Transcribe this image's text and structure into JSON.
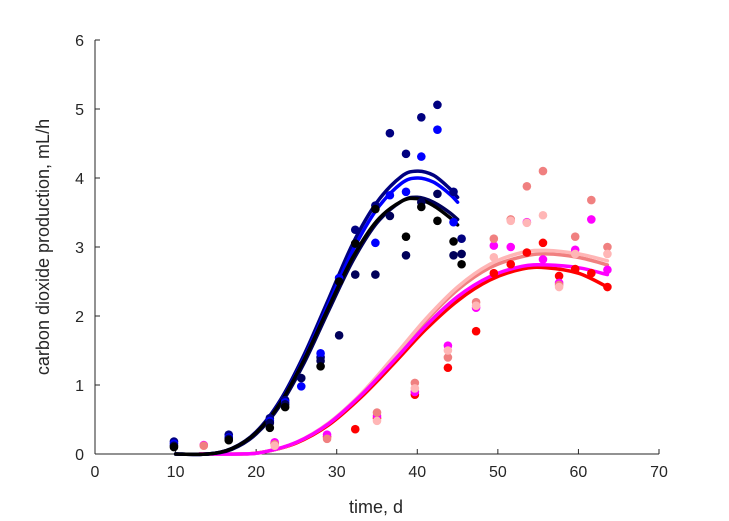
{
  "chart_data": {
    "type": "scatter",
    "title": "",
    "xlabel": "time, d",
    "ylabel": "carbon dioxide production, mL/h",
    "xlim": [
      0,
      70
    ],
    "ylim": [
      0,
      6
    ],
    "xticks": [
      "0",
      "10",
      "20",
      "30",
      "40",
      "50",
      "60",
      "70"
    ],
    "yticks": [
      "0",
      "1",
      "2",
      "3",
      "4",
      "5",
      "6"
    ],
    "grid": false,
    "legend": "none",
    "series": [
      {
        "color": "#000080",
        "points": [
          [
            9.8,
            0.18
          ],
          [
            16.6,
            0.28
          ],
          [
            21.7,
            0.52
          ],
          [
            23.6,
            0.78
          ],
          [
            28.0,
            1.4
          ],
          [
            30.3,
            2.55
          ],
          [
            32.3,
            3.25
          ],
          [
            34.8,
            3.6
          ],
          [
            36.6,
            4.65
          ],
          [
            38.6,
            4.35
          ],
          [
            40.5,
            4.88
          ],
          [
            42.5,
            5.06
          ],
          [
            44.5,
            3.8
          ],
          [
            45.5,
            3.12
          ]
        ],
        "fit": [
          [
            10,
            0.0
          ],
          [
            14,
            0.0
          ],
          [
            17,
            0.08
          ],
          [
            20,
            0.32
          ],
          [
            23,
            0.78
          ],
          [
            26,
            1.45
          ],
          [
            29,
            2.25
          ],
          [
            32,
            3.05
          ],
          [
            35,
            3.65
          ],
          [
            38,
            4.02
          ],
          [
            40,
            4.1
          ],
          [
            42,
            4.04
          ],
          [
            44,
            3.85
          ],
          [
            45,
            3.72
          ]
        ]
      },
      {
        "color": "#0000ff",
        "points": [
          [
            9.8,
            0.15
          ],
          [
            16.6,
            0.24
          ],
          [
            21.7,
            0.48
          ],
          [
            23.6,
            0.75
          ],
          [
            25.6,
            0.98
          ],
          [
            28.0,
            1.46
          ],
          [
            30.3,
            2.55
          ],
          [
            32.3,
            3.05
          ],
          [
            34.8,
            3.06
          ],
          [
            36.6,
            3.75
          ],
          [
            38.6,
            3.8
          ],
          [
            40.5,
            4.31
          ],
          [
            42.5,
            4.7
          ],
          [
            44.5,
            3.36
          ]
        ],
        "fit": [
          [
            10,
            0.0
          ],
          [
            14,
            0.0
          ],
          [
            17,
            0.08
          ],
          [
            20,
            0.31
          ],
          [
            23,
            0.75
          ],
          [
            26,
            1.4
          ],
          [
            29,
            2.18
          ],
          [
            32,
            2.95
          ],
          [
            35,
            3.55
          ],
          [
            38,
            3.92
          ],
          [
            40,
            4.0
          ],
          [
            42,
            3.94
          ],
          [
            44,
            3.77
          ],
          [
            45,
            3.65
          ]
        ]
      },
      {
        "color": "#00005a",
        "points": [
          [
            9.8,
            0.12
          ],
          [
            16.6,
            0.22
          ],
          [
            21.7,
            0.45
          ],
          [
            23.6,
            0.72
          ],
          [
            25.6,
            1.1
          ],
          [
            28.0,
            1.35
          ],
          [
            30.3,
            1.72
          ],
          [
            32.3,
            2.6
          ],
          [
            34.8,
            2.6
          ],
          [
            36.6,
            3.45
          ],
          [
            38.6,
            2.88
          ],
          [
            40.5,
            3.65
          ],
          [
            42.5,
            3.77
          ],
          [
            44.5,
            2.88
          ],
          [
            45.5,
            2.9
          ]
        ],
        "fit": [
          [
            10,
            0.0
          ],
          [
            14,
            0.0
          ],
          [
            17,
            0.07
          ],
          [
            20,
            0.29
          ],
          [
            23,
            0.71
          ],
          [
            26,
            1.33
          ],
          [
            29,
            2.08
          ],
          [
            32,
            2.8
          ],
          [
            35,
            3.35
          ],
          [
            38,
            3.66
          ],
          [
            40,
            3.72
          ],
          [
            42,
            3.65
          ],
          [
            44,
            3.5
          ],
          [
            45,
            3.4
          ]
        ]
      },
      {
        "color": "#000000",
        "points": [
          [
            9.8,
            0.1
          ],
          [
            16.6,
            0.2
          ],
          [
            21.7,
            0.38
          ],
          [
            23.6,
            0.68
          ],
          [
            28.0,
            1.27
          ],
          [
            30.3,
            2.5
          ],
          [
            32.3,
            3.05
          ],
          [
            34.8,
            3.55
          ],
          [
            38.6,
            3.15
          ],
          [
            40.5,
            3.58
          ],
          [
            42.5,
            3.38
          ],
          [
            44.5,
            3.08
          ],
          [
            45.5,
            2.75
          ]
        ],
        "fit": [
          [
            10,
            0.0
          ],
          [
            14,
            0.0
          ],
          [
            17,
            0.08
          ],
          [
            20,
            0.31
          ],
          [
            23,
            0.74
          ],
          [
            26,
            1.38
          ],
          [
            29,
            2.13
          ],
          [
            32,
            2.85
          ],
          [
            35,
            3.38
          ],
          [
            38,
            3.66
          ],
          [
            40,
            3.7
          ],
          [
            42,
            3.6
          ],
          [
            44,
            3.43
          ],
          [
            45,
            3.32
          ]
        ]
      },
      {
        "color": "#ff0000",
        "points": [
          [
            22.3,
            0.15
          ],
          [
            28.8,
            0.25
          ],
          [
            32.3,
            0.36
          ],
          [
            35.0,
            0.52
          ],
          [
            39.7,
            0.86
          ],
          [
            43.8,
            1.25
          ],
          [
            47.3,
            1.78
          ],
          [
            49.5,
            2.62
          ],
          [
            51.6,
            2.75
          ],
          [
            53.6,
            2.92
          ],
          [
            55.6,
            3.06
          ],
          [
            57.6,
            2.58
          ],
          [
            59.6,
            2.68
          ],
          [
            61.6,
            2.62
          ],
          [
            63.6,
            2.42
          ]
        ],
        "fit": [
          [
            13,
            0.0
          ],
          [
            18,
            0.0
          ],
          [
            21,
            0.03
          ],
          [
            25,
            0.16
          ],
          [
            29,
            0.42
          ],
          [
            33,
            0.82
          ],
          [
            37,
            1.3
          ],
          [
            41,
            1.8
          ],
          [
            45,
            2.22
          ],
          [
            49,
            2.52
          ],
          [
            53,
            2.68
          ],
          [
            56,
            2.7
          ],
          [
            60,
            2.62
          ],
          [
            63.6,
            2.42
          ]
        ]
      },
      {
        "color": "#ff00ff",
        "points": [
          [
            13.5,
            0.13
          ],
          [
            22.3,
            0.17
          ],
          [
            28.8,
            0.28
          ],
          [
            35.0,
            0.55
          ],
          [
            39.7,
            0.9
          ],
          [
            43.8,
            1.57
          ],
          [
            47.3,
            2.12
          ],
          [
            49.5,
            3.02
          ],
          [
            51.6,
            3.0
          ],
          [
            53.6,
            3.36
          ],
          [
            55.6,
            2.82
          ],
          [
            57.6,
            2.48
          ],
          [
            59.6,
            2.96
          ],
          [
            61.6,
            3.4
          ],
          [
            63.6,
            2.67
          ]
        ],
        "fit": [
          [
            13,
            0.0
          ],
          [
            18,
            0.0
          ],
          [
            21,
            0.03
          ],
          [
            25,
            0.17
          ],
          [
            29,
            0.44
          ],
          [
            33,
            0.85
          ],
          [
            37,
            1.34
          ],
          [
            41,
            1.85
          ],
          [
            45,
            2.28
          ],
          [
            49,
            2.57
          ],
          [
            53,
            2.72
          ],
          [
            56,
            2.74
          ],
          [
            60,
            2.7
          ],
          [
            63.6,
            2.6
          ]
        ]
      },
      {
        "color": "#f08080",
        "points": [
          [
            13.5,
            0.12
          ],
          [
            22.3,
            0.14
          ],
          [
            28.8,
            0.22
          ],
          [
            35.0,
            0.6
          ],
          [
            39.7,
            1.03
          ],
          [
            43.8,
            1.4
          ],
          [
            47.3,
            2.2
          ],
          [
            49.5,
            3.12
          ],
          [
            51.6,
            3.4
          ],
          [
            53.6,
            3.88
          ],
          [
            55.6,
            4.1
          ],
          [
            57.6,
            2.45
          ],
          [
            59.6,
            3.15
          ],
          [
            61.6,
            3.68
          ],
          [
            63.6,
            3.0
          ]
        ],
        "fit": [
          [
            13,
            0.0
          ],
          [
            18,
            0.0
          ],
          [
            21,
            0.03
          ],
          [
            25,
            0.17
          ],
          [
            29,
            0.44
          ],
          [
            33,
            0.86
          ],
          [
            37,
            1.38
          ],
          [
            41,
            1.92
          ],
          [
            45,
            2.38
          ],
          [
            49,
            2.7
          ],
          [
            53,
            2.86
          ],
          [
            56,
            2.9
          ],
          [
            60,
            2.85
          ],
          [
            63.6,
            2.74
          ]
        ]
      },
      {
        "color": "#ffb6b6",
        "points": [
          [
            22.3,
            0.12
          ],
          [
            35.0,
            0.48
          ],
          [
            39.7,
            0.95
          ],
          [
            43.8,
            1.5
          ],
          [
            47.3,
            2.15
          ],
          [
            49.5,
            2.85
          ],
          [
            51.6,
            3.38
          ],
          [
            53.6,
            3.35
          ],
          [
            55.6,
            3.46
          ],
          [
            57.6,
            2.42
          ],
          [
            59.6,
            2.9
          ],
          [
            63.6,
            2.9
          ]
        ],
        "fit": [
          [
            13,
            0.0
          ],
          [
            18,
            0.0
          ],
          [
            21,
            0.03
          ],
          [
            25,
            0.17
          ],
          [
            29,
            0.45
          ],
          [
            33,
            0.87
          ],
          [
            37,
            1.4
          ],
          [
            41,
            1.95
          ],
          [
            45,
            2.42
          ],
          [
            49,
            2.75
          ],
          [
            53,
            2.92
          ],
          [
            56,
            2.95
          ],
          [
            60,
            2.9
          ],
          [
            63.6,
            2.8
          ]
        ]
      }
    ]
  }
}
